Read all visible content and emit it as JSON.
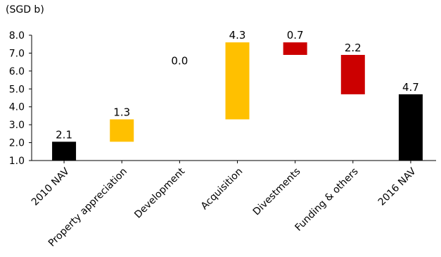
{
  "chart_data": {
    "type": "bar",
    "subtype": "waterfall",
    "unit_label": "(SGD b)",
    "categories": [
      "2010 NAV",
      "Property appreciation",
      "Development",
      "Acquisition",
      "Divestments",
      "Funding & others",
      "2016 NAV"
    ],
    "values": [
      2.1,
      1.3,
      0.0,
      4.3,
      0.7,
      2.2,
      4.7
    ],
    "value_labels": [
      "2.1",
      "1.3",
      "0.0",
      "4.3",
      "0.7",
      "2.2",
      "4.7"
    ],
    "bars": [
      {
        "start": 1.0,
        "end": 2.05,
        "kind": "total"
      },
      {
        "start": 2.05,
        "end": 3.3,
        "kind": "increase"
      },
      {
        "start": 3.3,
        "end": 3.3,
        "kind": "increase"
      },
      {
        "start": 3.3,
        "end": 7.6,
        "kind": "increase"
      },
      {
        "start": 7.6,
        "end": 6.9,
        "kind": "decrease"
      },
      {
        "start": 6.9,
        "end": 4.7,
        "kind": "decrease"
      },
      {
        "start": 1.0,
        "end": 4.7,
        "kind": "total"
      }
    ],
    "ylim": [
      1.0,
      8.0
    ],
    "yticks": [
      "1.0",
      "2.0",
      "3.0",
      "4.0",
      "5.0",
      "6.0",
      "7.0",
      "8.0"
    ],
    "ytick_values": [
      1,
      2,
      3,
      4,
      5,
      6,
      7,
      8
    ],
    "grid": false,
    "colors": {
      "total": "#000000",
      "increase": "#FFC000",
      "decrease": "#CC0000"
    }
  }
}
